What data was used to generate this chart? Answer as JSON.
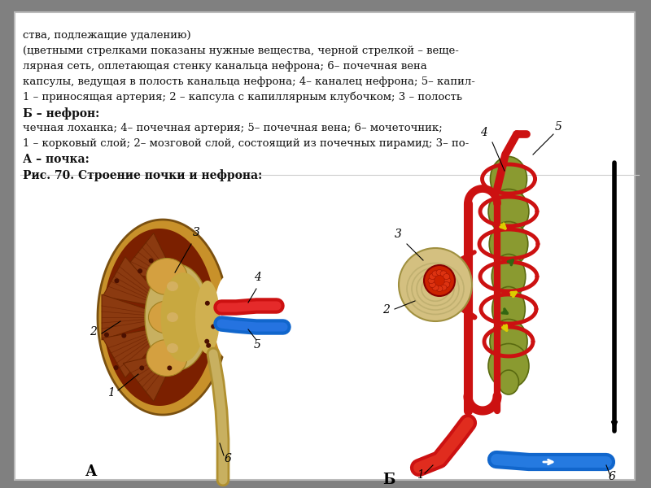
{
  "bg_color": "#808080",
  "panel_bg": "#ffffff",
  "title_bold": "Рис. 70. Строение почки и нефрона:",
  "label_A_bold": "А – почка:",
  "label_A_text": "1 – корковый слой; 2– мозговой слой, состоящий из почечных пирамид; 3– по-\nчечная лоханка; 4– почечная артерия; 5– почечная вена; 6– мочеточник;",
  "label_B_bold": "Б – нефрон:",
  "label_B_text": "1 – приносящая артерия; 2 – капсула с капиллярным клубочком; 3 – полость\nкапсулы, ведущая в полость канальца нефрона; 4– каналец нефрона; 5– капил-\nлярная сеть, оплетающая стенку канальца нефрона; 6– почечная вена\n(цветными стрелками показаны нужные вещества, черной стрелкой – веще-\nства, подлежащие удалению)",
  "red_color": "#cc1111",
  "blue_color": "#1166cc",
  "dark_red": "#8B0000",
  "cortex_dark": "#7B2000",
  "cortex_mid": "#9B3A00",
  "outer_orange": "#c8912a",
  "inner_orange": "#d4a040",
  "medulla_gold": "#c8a030",
  "pelvis_tan": "#c8b060",
  "pyramid_brown": "#8B4513",
  "green_tubule": "#8a9a30",
  "green_tubule_light": "#9aaa40",
  "yellow_arrow": "#ddcc00",
  "green_arrow": "#448822",
  "text_color": "#111111"
}
